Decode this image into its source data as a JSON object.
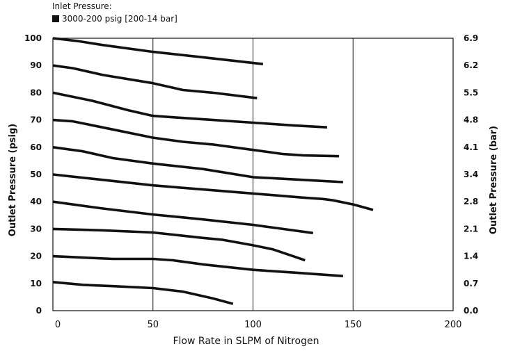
{
  "chart_data": {
    "type": "line",
    "legend": {
      "title": "Inlet Pressure:",
      "entry": "3000-200 psig [200-14 bar]",
      "color": "#111111",
      "placement": "top-left"
    },
    "xlabel": "Flow Rate in SLPM of Nitrogen",
    "ylabel": "Outlet Pressure (psig)",
    "y2label": "Outlet Pressure (bar)",
    "xlim": [
      0,
      200
    ],
    "ylim": [
      0,
      100
    ],
    "x_ticks": [
      "0",
      "50",
      "100",
      "150",
      "200"
    ],
    "y_ticks": [
      "0",
      "10",
      "20",
      "30",
      "40",
      "50",
      "60",
      "70",
      "80",
      "90",
      "100"
    ],
    "y2_ticks": [
      "0.0",
      "0.7",
      "1.4",
      "2.1",
      "2.8",
      "3.4",
      "4.1",
      "4.8",
      "5.5",
      "6.2",
      "6.9"
    ],
    "grid": {
      "x": [
        50,
        100,
        150
      ],
      "y": []
    },
    "series": [
      {
        "x": [
          0,
          12,
          25,
          50,
          75,
          105
        ],
        "y": [
          100,
          99,
          97.5,
          95,
          93,
          90.5
        ]
      },
      {
        "x": [
          0,
          10,
          25,
          50,
          65,
          80,
          102
        ],
        "y": [
          90,
          89,
          86.5,
          83.5,
          81,
          80,
          78
        ]
      },
      {
        "x": [
          0,
          20,
          38,
          50,
          60,
          80,
          100,
          120,
          137
        ],
        "y": [
          80,
          77,
          73.5,
          71.5,
          71,
          70,
          69,
          68,
          67.3
        ]
      },
      {
        "x": [
          0,
          10,
          30,
          50,
          65,
          80,
          100,
          115,
          125,
          143
        ],
        "y": [
          70,
          69.5,
          66.5,
          63.5,
          62,
          61,
          59,
          57.5,
          57,
          56.7
        ]
      },
      {
        "x": [
          0,
          15,
          30,
          50,
          75,
          100,
          125,
          145
        ],
        "y": [
          60,
          58.5,
          56,
          54,
          52,
          49,
          48,
          47.2
        ]
      },
      {
        "x": [
          0,
          25,
          50,
          75,
          100,
          125,
          135,
          140,
          150,
          160
        ],
        "y": [
          50,
          48,
          46,
          44.5,
          43,
          41.5,
          41,
          40.5,
          39,
          37
        ]
      },
      {
        "x": [
          0,
          25,
          50,
          75,
          100,
          115,
          130
        ],
        "y": [
          40,
          37.5,
          35.3,
          33.5,
          31.5,
          30,
          28.5
        ]
      },
      {
        "x": [
          0,
          25,
          50,
          65,
          75,
          85,
          100,
          110,
          120,
          126
        ],
        "y": [
          30,
          29.5,
          28.7,
          27.5,
          26.7,
          26,
          24,
          22.5,
          20,
          18.5
        ]
      },
      {
        "x": [
          0,
          15,
          30,
          50,
          60,
          75,
          100,
          120,
          145
        ],
        "y": [
          20,
          19.5,
          19,
          19,
          18.5,
          17,
          15,
          14,
          12.7
        ]
      },
      {
        "x": [
          0,
          15,
          30,
          50,
          65,
          80,
          90
        ],
        "y": [
          10.5,
          9.5,
          9,
          8.3,
          7,
          4.5,
          2.5
        ]
      }
    ]
  }
}
